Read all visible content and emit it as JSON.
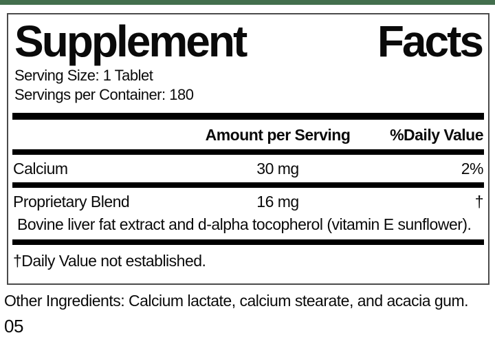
{
  "colors": {
    "accent_green": "#436f4d",
    "panel_border": "#4a4a4a",
    "divider": "#000000"
  },
  "panel": {
    "title_word_left": "Supplement",
    "title_word_right": "Facts",
    "serving_size": "Serving Size: 1 Tablet",
    "servings_per_container": "Servings per Container: 180",
    "columns": {
      "amount_header": "Amount per Serving",
      "daily_value_header": "%Daily Value"
    },
    "rows": [
      {
        "name": "Calcium",
        "amount": "30 mg",
        "dv": "2%"
      },
      {
        "name": "Proprietary Blend",
        "amount": "16 mg",
        "dv": "†",
        "description": "Bovine liver fat extract and d-alpha tocopherol (vitamin E sunflower)."
      }
    ],
    "footnote": "†Daily Value not established."
  },
  "footer": {
    "other_ingredients": "Other Ingredients: Calcium lactate, calcium stearate, and acacia gum.",
    "code": "05"
  }
}
